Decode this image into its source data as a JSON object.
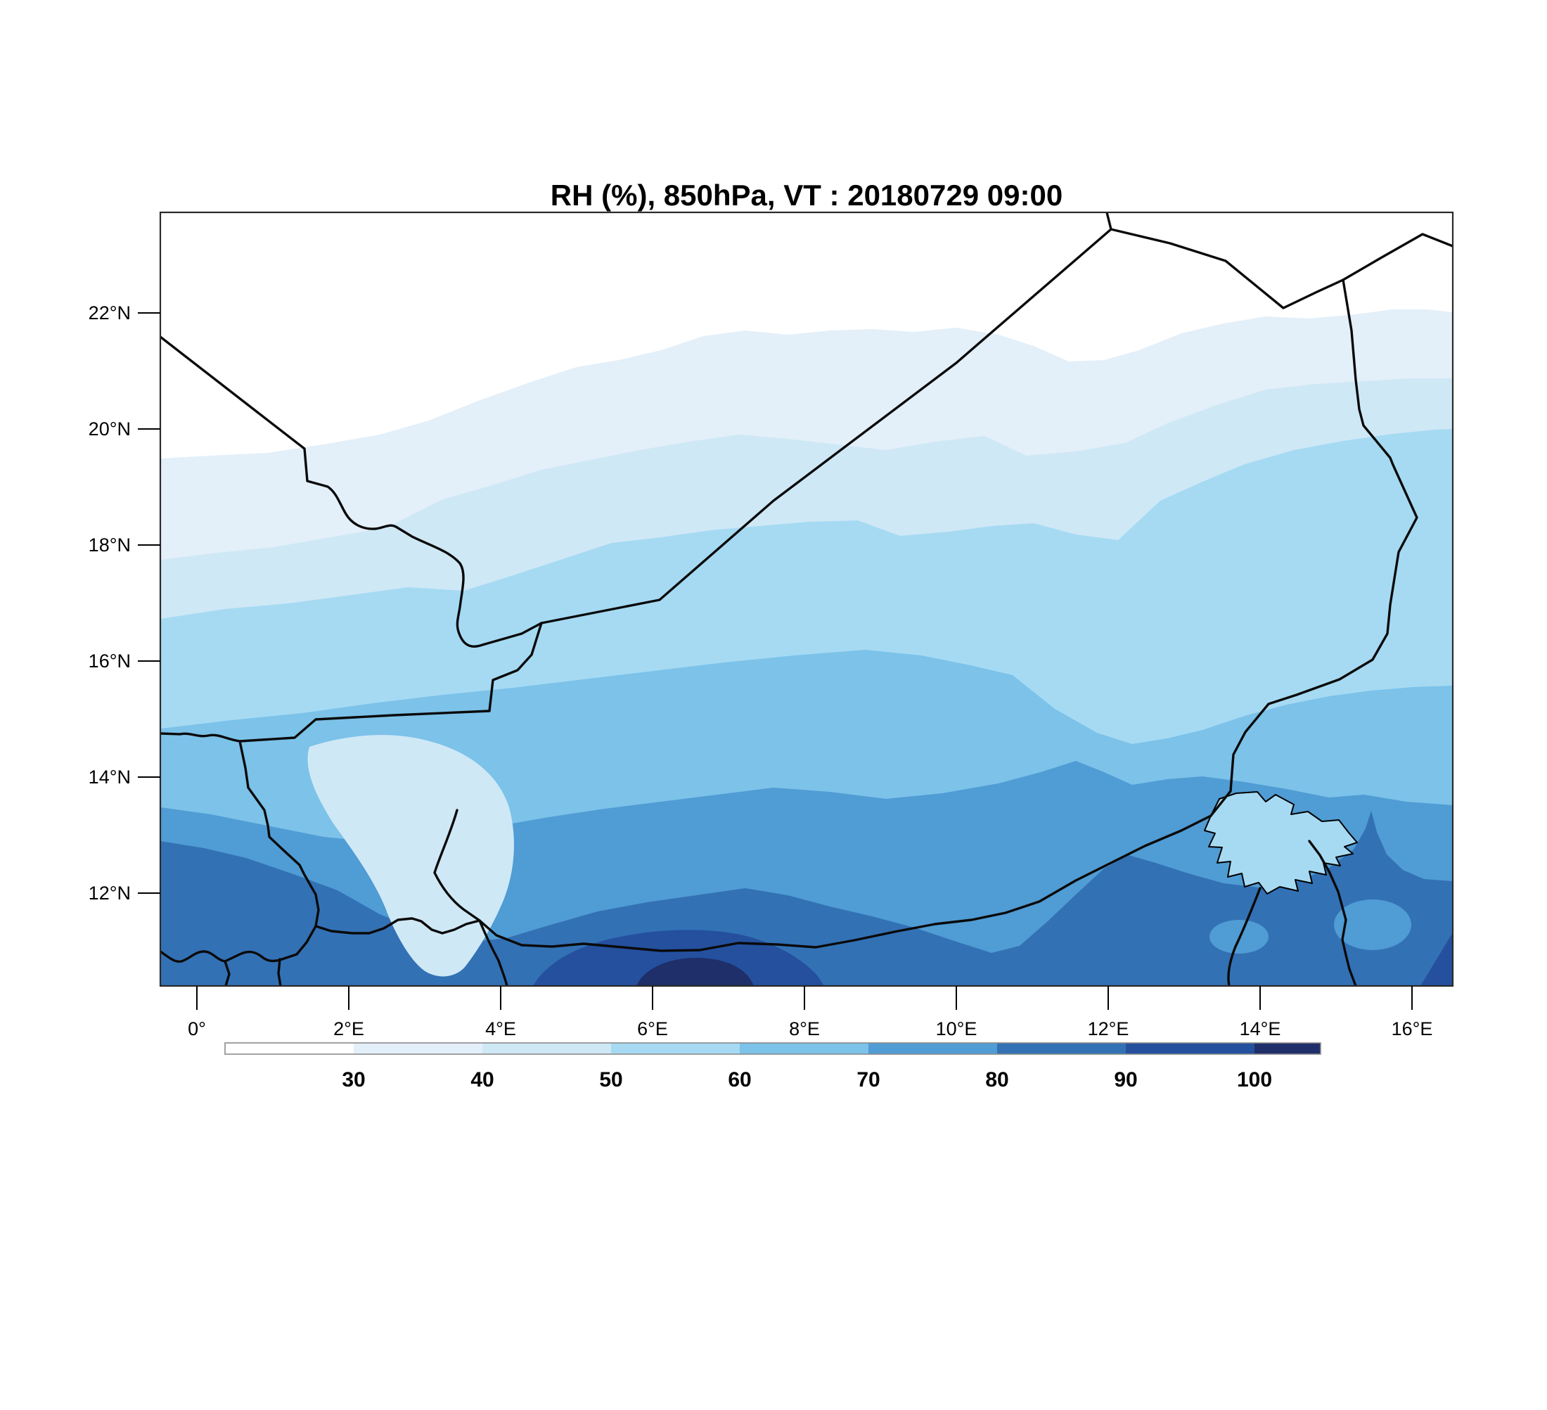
{
  "title": "RH (%), 850hPa, VT : 20180729  09:00",
  "map": {
    "lat_tick_labels": [
      "22°N",
      "20°N",
      "18°N",
      "16°N",
      "14°N",
      "12°N"
    ],
    "lon_tick_labels": [
      "0°",
      "2°E",
      "4°E",
      "6°E",
      "8°E",
      "10°E",
      "12°E",
      "14°E",
      "16°E"
    ]
  },
  "colorbar": {
    "tick_labels": [
      "30",
      "40",
      "50",
      "60",
      "70",
      "80",
      "90",
      "100"
    ],
    "segment_colors": [
      "#ffffff",
      "#e3eff9",
      "#cfe8f6",
      "#a6daf3",
      "#7cc2e9",
      "#509cd4",
      "#3371b5",
      "#24509e",
      "#1e2f69"
    ]
  },
  "chart_data": {
    "type": "filled-contour-map",
    "title": "RH (%), 850hPa, VT : 20180729  09:00",
    "variable": "RH",
    "units": "%",
    "pressure_level": "850hPa",
    "valid_time": "20180729 09:00",
    "contour_levels": [
      30,
      40,
      50,
      60,
      70,
      80,
      90,
      100
    ],
    "x_axis": {
      "ticks": [
        "0°",
        "2°E",
        "4°E",
        "6°E",
        "8°E",
        "10°E",
        "12°E",
        "14°E",
        "16°E"
      ]
    },
    "y_axis": {
      "ticks": [
        "12°N",
        "14°N",
        "16°N",
        "18°N",
        "20°N",
        "22°N"
      ]
    },
    "legend_position": "bottom",
    "palette": [
      "#ffffff",
      "#e3eff9",
      "#cfe8f6",
      "#a6daf3",
      "#7cc2e9",
      "#509cd4",
      "#3371b5",
      "#24509e",
      "#1e2f69"
    ],
    "pattern": "Relative humidity low (white, <30%) over the Sahara in the north, increasing in wavy zonal bands southward to dark blue (>100 level) maxima near the bottom-centre and south-east of the domain"
  }
}
